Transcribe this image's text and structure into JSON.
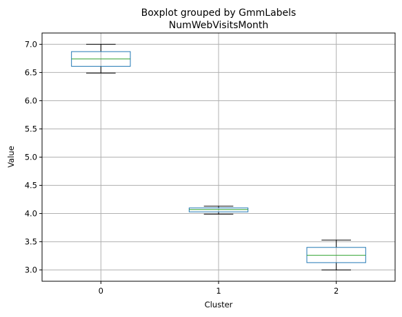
{
  "chart_data": {
    "type": "boxplot",
    "title": "Boxplot grouped by GmmLabels",
    "subtitle": "NumWebVisitsMonth",
    "xlabel": "Cluster",
    "ylabel": "Value",
    "categories": [
      "0",
      "1",
      "2"
    ],
    "ylim": [
      2.8,
      7.2
    ],
    "yticks": [
      3.0,
      3.5,
      4.0,
      4.5,
      5.0,
      5.5,
      6.0,
      6.5,
      7.0
    ],
    "ytick_labels": [
      "3.0",
      "3.5",
      "4.0",
      "4.5",
      "5.0",
      "5.5",
      "6.0",
      "6.5",
      "7.0"
    ],
    "grid": true,
    "boxes": [
      {
        "category": "0",
        "whislo": 6.49,
        "q1": 6.61,
        "med": 6.74,
        "q3": 6.87,
        "whishi": 7.0
      },
      {
        "category": "1",
        "whislo": 3.99,
        "q1": 4.03,
        "med": 4.07,
        "q3": 4.1,
        "whishi": 4.13
      },
      {
        "category": "2",
        "whislo": 3.0,
        "q1": 3.13,
        "med": 3.26,
        "q3": 3.4,
        "whishi": 3.53
      }
    ],
    "colors": {
      "box": "#1f77b4",
      "median": "#2ca02c",
      "whisker_cap": "#000000",
      "grid": "#b0b0b0"
    }
  }
}
